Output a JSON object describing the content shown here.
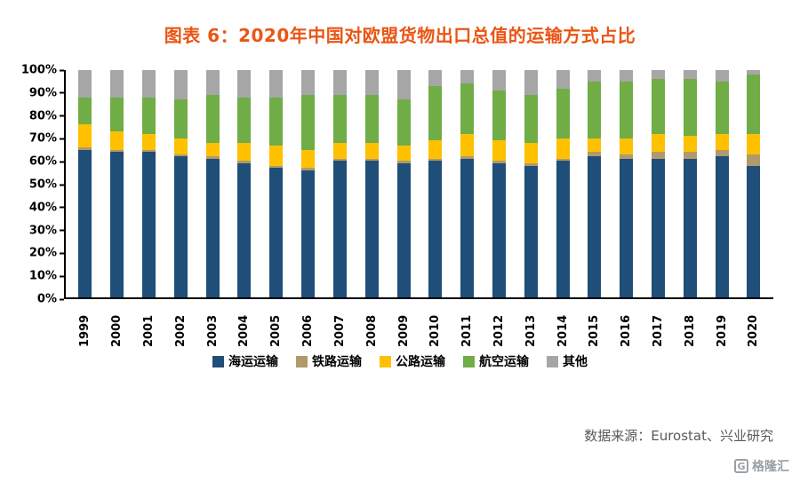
{
  "title": "图表 6：2020年中国对欧盟货物出口总值的运输方式占比",
  "source": "数据来源：Eurostat、兴业研究",
  "logo": {
    "text": "格隆汇",
    "icon": "G"
  },
  "chart_data": {
    "type": "bar",
    "stacked": true,
    "percent": true,
    "title": "图表 6：2020年中国对欧盟货物出口总值的运输方式占比",
    "xlabel": "",
    "ylabel": "",
    "ylim": [
      0,
      100
    ],
    "yticks": [
      "0%",
      "10%",
      "20%",
      "30%",
      "40%",
      "50%",
      "60%",
      "70%",
      "80%",
      "90%",
      "100%"
    ],
    "legend_position": "bottom",
    "grid": false,
    "categories": [
      "1999",
      "2000",
      "2001",
      "2002",
      "2003",
      "2004",
      "2005",
      "2006",
      "2007",
      "2008",
      "2009",
      "2010",
      "2011",
      "2012",
      "2013",
      "2014",
      "2015",
      "2016",
      "2017",
      "2018",
      "2019",
      "2020"
    ],
    "series": [
      {
        "name": "海运运输",
        "color": "#1F4E79",
        "values": [
          65,
          64,
          64,
          62,
          61,
          59,
          57,
          56,
          60,
          60,
          59,
          60,
          61,
          59,
          58,
          60,
          62,
          61,
          61,
          61,
          62,
          58
        ]
      },
      {
        "name": "铁路运输",
        "color": "#B09A6B",
        "values": [
          1,
          1,
          1,
          1,
          1,
          1,
          1,
          1,
          1,
          1,
          1,
          1,
          1,
          1,
          1,
          1,
          2,
          2,
          3,
          3,
          3,
          5
        ]
      },
      {
        "name": "公路运输",
        "color": "#FFC000",
        "values": [
          10,
          8,
          7,
          7,
          6,
          8,
          9,
          8,
          7,
          7,
          7,
          8,
          10,
          9,
          9,
          9,
          6,
          7,
          8,
          7,
          7,
          9
        ]
      },
      {
        "name": "航空运输",
        "color": "#70AD47",
        "values": [
          12,
          15,
          16,
          17,
          21,
          20,
          21,
          24,
          21,
          21,
          20,
          24,
          22,
          22,
          21,
          22,
          25,
          25,
          24,
          25,
          23,
          26
        ]
      },
      {
        "name": "其他",
        "color": "#A6A6A6",
        "values": [
          12,
          12,
          12,
          13,
          11,
          12,
          12,
          11,
          11,
          11,
          13,
          7,
          6,
          9,
          11,
          8,
          5,
          5,
          4,
          4,
          5,
          2
        ]
      }
    ]
  }
}
